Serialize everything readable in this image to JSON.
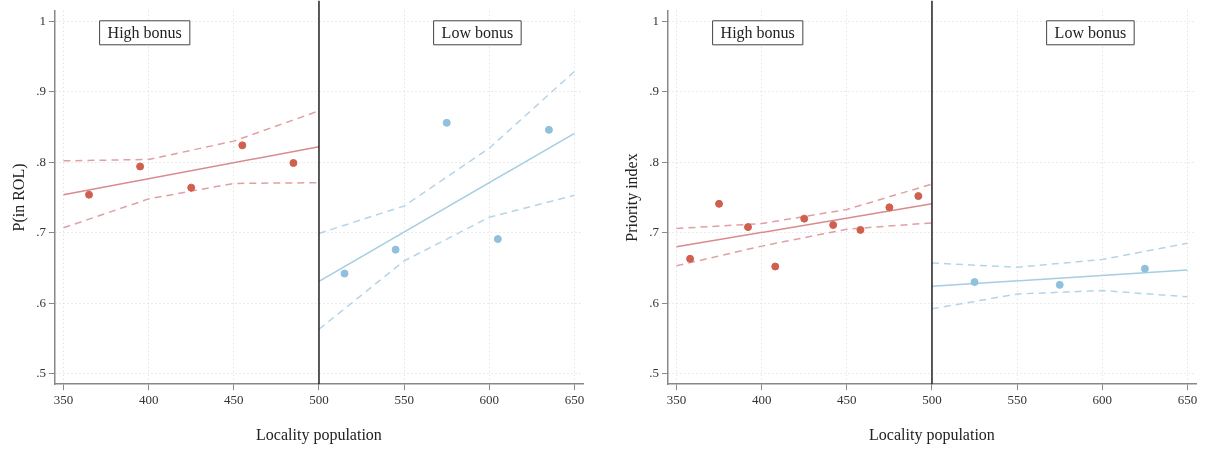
{
  "chart_data": [
    {
      "type": "scatter",
      "xlabel": "Locality population",
      "ylabel": "P(in ROL)",
      "xlim": [
        345,
        655
      ],
      "ylim": [
        0.485,
        1.015
      ],
      "xticks": [
        350,
        400,
        450,
        500,
        550,
        600,
        650
      ],
      "yticks": [
        {
          "value": 0.5,
          "label": ".5"
        },
        {
          "value": 0.6,
          "label": ".6"
        },
        {
          "value": 0.7,
          "label": ".7"
        },
        {
          "value": 0.8,
          "label": ".8"
        },
        {
          "value": 0.9,
          "label": ".9"
        },
        1
      ],
      "grid": true,
      "legend": false,
      "annotations": [
        "High bonus",
        "Low bonus"
      ],
      "ref_lines": [
        {
          "axis": "x",
          "value": 500,
          "color": "#222222",
          "line_style": "solid"
        }
      ],
      "series": [
        {
          "marker": "circle",
          "color": "#d0604e",
          "x": [
            365,
            395,
            425,
            455,
            485
          ],
          "values": [
            0.754,
            0.794,
            0.764,
            0.824,
            0.799
          ]
        },
        {
          "type": "line",
          "color": "#d98a8e",
          "line_style": "solid",
          "x": [
            350,
            500
          ],
          "values": [
            0.754,
            0.822
          ]
        },
        {
          "type": "line",
          "color": "#e0a0a3",
          "line_style": "dashed",
          "x": [
            350,
            400,
            450,
            500
          ],
          "values": [
            0.802,
            0.804,
            0.83,
            0.873
          ]
        },
        {
          "type": "line",
          "color": "#e0a0a3",
          "line_style": "dashed",
          "x": [
            350,
            400,
            450,
            500
          ],
          "values": [
            0.707,
            0.748,
            0.77,
            0.771
          ]
        },
        {
          "marker": "circle",
          "color": "#8fc0dc",
          "x": [
            515,
            545,
            575,
            605,
            635
          ],
          "values": [
            0.642,
            0.676,
            0.856,
            0.691,
            0.846
          ]
        },
        {
          "type": "line",
          "color": "#a6cde3",
          "line_style": "solid",
          "x": [
            500,
            650
          ],
          "values": [
            0.631,
            0.841
          ]
        },
        {
          "type": "line",
          "color": "#b4d5e8",
          "line_style": "dashed",
          "x": [
            500,
            550,
            600,
            650
          ],
          "values": [
            0.699,
            0.738,
            0.82,
            0.929
          ]
        },
        {
          "type": "line",
          "color": "#b4d5e8",
          "line_style": "dashed",
          "x": [
            500,
            550,
            600,
            650
          ],
          "values": [
            0.563,
            0.66,
            0.722,
            0.753
          ]
        }
      ]
    },
    {
      "type": "scatter",
      "xlabel": "Locality population",
      "ylabel": "Priority index",
      "xlim": [
        345,
        655
      ],
      "ylim": [
        0.485,
        1.015
      ],
      "xticks": [
        350,
        400,
        450,
        500,
        550,
        600,
        650
      ],
      "yticks": [
        {
          "value": 0.5,
          "label": ".5"
        },
        {
          "value": 0.6,
          "label": ".6"
        },
        {
          "value": 0.7,
          "label": ".7"
        },
        {
          "value": 0.8,
          "label": ".8"
        },
        {
          "value": 0.9,
          "label": ".9"
        },
        1
      ],
      "grid": true,
      "legend": false,
      "annotations": [
        "High bonus",
        "Low bonus"
      ],
      "ref_lines": [
        {
          "axis": "x",
          "value": 500,
          "color": "#222222",
          "line_style": "solid"
        }
      ],
      "series": [
        {
          "marker": "circle",
          "color": "#d0604e",
          "x": [
            358,
            375,
            392,
            408,
            425,
            442,
            458,
            475,
            492
          ],
          "values": [
            0.663,
            0.741,
            0.708,
            0.652,
            0.72,
            0.711,
            0.704,
            0.736,
            0.752
          ]
        },
        {
          "type": "line",
          "color": "#d98a8e",
          "line_style": "solid",
          "x": [
            350,
            500
          ],
          "values": [
            0.68,
            0.741
          ]
        },
        {
          "type": "line",
          "color": "#e0a0a3",
          "line_style": "dashed",
          "x": [
            350,
            400,
            450,
            500
          ],
          "values": [
            0.706,
            0.713,
            0.733,
            0.769
          ]
        },
        {
          "type": "line",
          "color": "#e0a0a3",
          "line_style": "dashed",
          "x": [
            350,
            400,
            450,
            500
          ],
          "values": [
            0.653,
            0.681,
            0.705,
            0.714
          ]
        },
        {
          "marker": "circle",
          "color": "#8fc0dc",
          "x": [
            525,
            575,
            625
          ],
          "values": [
            0.63,
            0.626,
            0.649
          ]
        },
        {
          "type": "line",
          "color": "#a6cde3",
          "line_style": "solid",
          "x": [
            500,
            650
          ],
          "values": [
            0.624,
            0.647
          ]
        },
        {
          "type": "line",
          "color": "#b4d5e8",
          "line_style": "dashed",
          "x": [
            500,
            550,
            600,
            650
          ],
          "values": [
            0.657,
            0.651,
            0.662,
            0.685
          ]
        },
        {
          "type": "line",
          "color": "#b4d5e8",
          "line_style": "dashed",
          "x": [
            500,
            550,
            600,
            650
          ],
          "values": [
            0.592,
            0.613,
            0.618,
            0.609
          ]
        }
      ]
    }
  ]
}
